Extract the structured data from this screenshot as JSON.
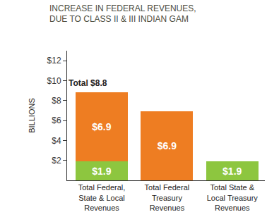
{
  "chart_data": {
    "type": "bar",
    "title": "INCREASE IN FEDERAL REVENUES, DUE TO CLASS II & III INDIAN GAM",
    "y_label": "BILLIONS",
    "categories": [
      "Total Federal, State & Local Revenues",
      "Total Federal Treasury Revenues",
      "Total State & Local Treasury Revenues"
    ],
    "series": [
      {
        "color": "#8dc63f",
        "values": [
          1.9,
          null,
          1.9
        ],
        "value_labels": [
          "$1.9",
          null,
          "$1.9"
        ]
      },
      {
        "color": "#ee7d22",
        "values": [
          6.9,
          6.9,
          null
        ],
        "value_labels": [
          "$6.9",
          "$6.9",
          null
        ]
      }
    ],
    "stacked": true,
    "data_labels": true,
    "grid": false,
    "ylim": [
      0,
      13
    ],
    "yticks": [
      {
        "value": 2,
        "label": "$2"
      },
      {
        "value": 4,
        "label": "$4"
      },
      {
        "value": 6,
        "label": "$6"
      },
      {
        "value": 8,
        "label": "$8"
      },
      {
        "value": 10,
        "label": "$10"
      },
      {
        "value": 12,
        "label": "$12"
      }
    ],
    "annotations": [
      {
        "text": "Total $8.8",
        "category": "Total Federal, State & Local Revenues",
        "value": 8.8
      }
    ]
  }
}
